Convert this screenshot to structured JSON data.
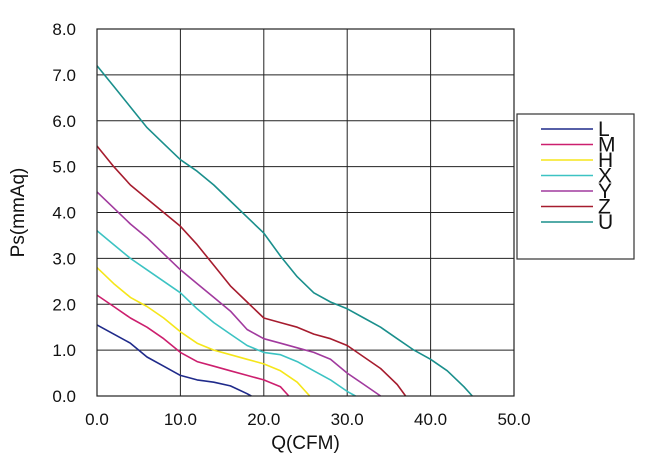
{
  "chart_data": {
    "type": "line",
    "title": "",
    "xlabel": "Q(CFM)",
    "ylabel": "Ps(mmAq)",
    "xlim": [
      0,
      50
    ],
    "ylim": [
      0,
      8
    ],
    "x_ticks": [
      "0.0",
      "10.0",
      "20.0",
      "30.0",
      "40.0",
      "50.0"
    ],
    "y_ticks": [
      "0.0",
      "1.0",
      "2.0",
      "3.0",
      "4.0",
      "5.0",
      "6.0",
      "7.0",
      "8.0"
    ],
    "grid": true,
    "legend_position": "right",
    "series": [
      {
        "name": "L",
        "color": "#1f2a8a",
        "points": [
          [
            0,
            1.55
          ],
          [
            2,
            1.35
          ],
          [
            4,
            1.15
          ],
          [
            6,
            0.85
          ],
          [
            8,
            0.65
          ],
          [
            10,
            0.45
          ],
          [
            12,
            0.35
          ],
          [
            14,
            0.3
          ],
          [
            16,
            0.22
          ],
          [
            18,
            0.05
          ],
          [
            18.5,
            0.0
          ]
        ]
      },
      {
        "name": "M",
        "color": "#cc1f6e",
        "points": [
          [
            0,
            2.2
          ],
          [
            2,
            1.95
          ],
          [
            4,
            1.7
          ],
          [
            6,
            1.5
          ],
          [
            8,
            1.25
          ],
          [
            10,
            0.95
          ],
          [
            12,
            0.75
          ],
          [
            14,
            0.65
          ],
          [
            16,
            0.55
          ],
          [
            18,
            0.45
          ],
          [
            20,
            0.35
          ],
          [
            22,
            0.2
          ],
          [
            23,
            0.0
          ]
        ]
      },
      {
        "name": "H",
        "color": "#f5e61a",
        "points": [
          [
            0,
            2.8
          ],
          [
            2,
            2.45
          ],
          [
            4,
            2.15
          ],
          [
            6,
            1.95
          ],
          [
            8,
            1.7
          ],
          [
            10,
            1.4
          ],
          [
            12,
            1.15
          ],
          [
            14,
            1.0
          ],
          [
            16,
            0.9
          ],
          [
            18,
            0.8
          ],
          [
            20,
            0.7
          ],
          [
            22,
            0.55
          ],
          [
            24,
            0.3
          ],
          [
            25.5,
            0.0
          ]
        ]
      },
      {
        "name": "X",
        "color": "#3cc3c3",
        "points": [
          [
            0,
            3.6
          ],
          [
            2,
            3.3
          ],
          [
            4,
            3.0
          ],
          [
            6,
            2.75
          ],
          [
            8,
            2.5
          ],
          [
            10,
            2.25
          ],
          [
            12,
            1.9
          ],
          [
            14,
            1.6
          ],
          [
            16,
            1.35
          ],
          [
            18,
            1.1
          ],
          [
            20,
            0.95
          ],
          [
            22,
            0.9
          ],
          [
            24,
            0.75
          ],
          [
            26,
            0.55
          ],
          [
            28,
            0.35
          ],
          [
            30,
            0.1
          ],
          [
            31,
            0.0
          ]
        ]
      },
      {
        "name": "Y",
        "color": "#a13a9e",
        "points": [
          [
            0,
            4.45
          ],
          [
            2,
            4.1
          ],
          [
            4,
            3.75
          ],
          [
            6,
            3.45
          ],
          [
            8,
            3.1
          ],
          [
            10,
            2.75
          ],
          [
            12,
            2.45
          ],
          [
            14,
            2.15
          ],
          [
            16,
            1.85
          ],
          [
            18,
            1.45
          ],
          [
            20,
            1.25
          ],
          [
            22,
            1.15
          ],
          [
            24,
            1.05
          ],
          [
            26,
            0.95
          ],
          [
            28,
            0.8
          ],
          [
            30,
            0.5
          ],
          [
            32,
            0.25
          ],
          [
            34,
            0.0
          ]
        ]
      },
      {
        "name": "Z",
        "color": "#a61c2e",
        "points": [
          [
            0,
            5.45
          ],
          [
            2,
            5.0
          ],
          [
            4,
            4.6
          ],
          [
            6,
            4.3
          ],
          [
            8,
            4.0
          ],
          [
            10,
            3.7
          ],
          [
            12,
            3.3
          ],
          [
            14,
            2.85
          ],
          [
            16,
            2.4
          ],
          [
            18,
            2.05
          ],
          [
            20,
            1.7
          ],
          [
            22,
            1.6
          ],
          [
            24,
            1.5
          ],
          [
            26,
            1.35
          ],
          [
            28,
            1.25
          ],
          [
            30,
            1.1
          ],
          [
            32,
            0.85
          ],
          [
            34,
            0.6
          ],
          [
            36,
            0.25
          ],
          [
            37,
            0.0
          ]
        ]
      },
      {
        "name": "U",
        "color": "#1a8f8c",
        "points": [
          [
            0,
            7.2
          ],
          [
            2,
            6.75
          ],
          [
            4,
            6.3
          ],
          [
            6,
            5.85
          ],
          [
            8,
            5.5
          ],
          [
            10,
            5.15
          ],
          [
            12,
            4.9
          ],
          [
            14,
            4.6
          ],
          [
            16,
            4.25
          ],
          [
            18,
            3.9
          ],
          [
            20,
            3.55
          ],
          [
            22,
            3.05
          ],
          [
            24,
            2.6
          ],
          [
            26,
            2.25
          ],
          [
            28,
            2.05
          ],
          [
            30,
            1.9
          ],
          [
            32,
            1.7
          ],
          [
            34,
            1.5
          ],
          [
            36,
            1.25
          ],
          [
            38,
            1.0
          ],
          [
            40,
            0.8
          ],
          [
            42,
            0.55
          ],
          [
            44,
            0.2
          ],
          [
            45,
            0.0
          ]
        ]
      }
    ]
  }
}
